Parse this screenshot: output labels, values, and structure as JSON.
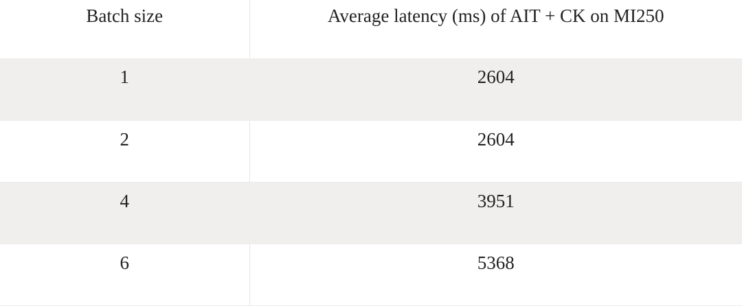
{
  "table": {
    "headers": [
      "Batch size",
      "Average latency (ms) of AIT + CK on MI250"
    ],
    "rows": [
      [
        "1",
        "2604"
      ],
      [
        "2",
        "2604"
      ],
      [
        "4",
        "3951"
      ],
      [
        "6",
        "5368"
      ]
    ]
  }
}
